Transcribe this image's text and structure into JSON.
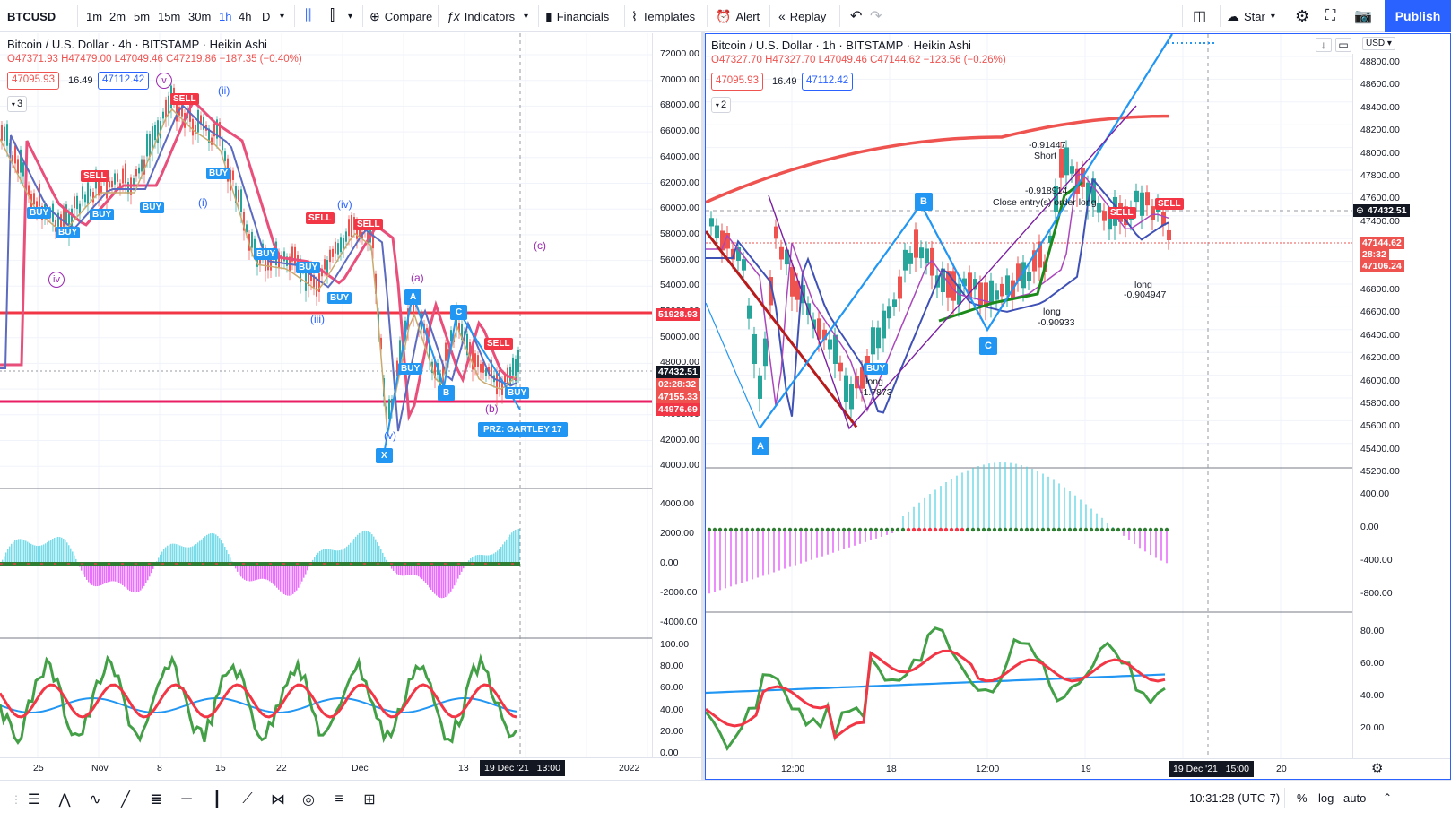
{
  "toolbar": {
    "symbol": "BTCUSD",
    "timeframes": [
      "1m",
      "2m",
      "5m",
      "15m",
      "30m",
      "1h",
      "4h",
      "D"
    ],
    "active_timeframe": "1h",
    "compare_label": "Compare",
    "indicators_label": "Indicators",
    "financials_label": "Financials",
    "templates_label": "Templates",
    "alert_label": "Alert",
    "replay_label": "Replay",
    "star_label": "Star",
    "publish_label": "Publish"
  },
  "left_chart": {
    "title": "Bitcoin / U.S. Dollar · 4h · BITSTAMP · Heikin Ashi",
    "ohlc": "O47371.93  H47479.00  L47049.46  C47219.86  −187.35 (−0.40%)",
    "bid": "47095.93",
    "spread": "16.49",
    "ask": "47112.42",
    "indicator_count": "3",
    "price_ticks": [
      "72000.00",
      "70000.00",
      "68000.00",
      "66000.00",
      "64000.00",
      "62000.00",
      "60000.00",
      "58000.00",
      "56000.00",
      "54000.00",
      "52000.00",
      "50000.00",
      "48000.00",
      "46000.00",
      "44000.00",
      "42000.00",
      "40000.00"
    ],
    "tag_red_top": "51928.93",
    "tag_last": "47432.51",
    "tag_countdown": "02:28:32",
    "tag_price": "47155.33",
    "tag_red_bottom": "44976.69",
    "macd_ticks": [
      "4000.00",
      "2000.00",
      "0.00",
      "-2000.00",
      "-4000.00"
    ],
    "rsi_ticks": [
      "100.00",
      "80.00",
      "60.00",
      "40.00",
      "20.00",
      "0.00"
    ],
    "time_ticks": [
      "25",
      "Nov",
      "8",
      "15",
      "22",
      "Dec",
      "13",
      "2022"
    ],
    "time_marker": "19 Dec '21",
    "time_marker_hour": "13:00",
    "waves": {
      "w_ii": "(ii)",
      "w_i": "(i)",
      "w_iii": "(iii)",
      "w_iv": "(iv)",
      "w_v": "(v)",
      "w_iv_low": "iv",
      "w_v_top": "v",
      "w_a": "(a)",
      "w_b": "(b)",
      "w_c": "(c)"
    },
    "pattern_points": {
      "x": "X",
      "a": "A",
      "b": "B",
      "c": "C"
    },
    "prz_label": "PRZ: GARTLEY 17",
    "buy_label": "BUY",
    "sell_label": "SELL"
  },
  "right_chart": {
    "title": "Bitcoin / U.S. Dollar · 1h · BITSTAMP · Heikin Ashi",
    "ohlc": "O47327.70  H47327.70  L47049.46  C47144.62  −123.56 (−0.26%)",
    "bid": "47095.93",
    "spread": "16.49",
    "ask": "47112.42",
    "indicator_count": "2",
    "currency": "USD",
    "price_ticks": [
      "48800.00",
      "48600.00",
      "48400.00",
      "48200.00",
      "48000.00",
      "47800.00",
      "47600.00",
      "47400.00",
      "47200.00",
      "47000.00",
      "46800.00",
      "46600.00",
      "46400.00",
      "46200.00",
      "46000.00",
      "45800.00",
      "45600.00",
      "45400.00",
      "45200.00"
    ],
    "tag_last": "47432.51",
    "tag_price": "47144.62",
    "tag_countdown": "28:32",
    "tag_low": "47106.24",
    "macd_ticks": [
      "400.00",
      "0.00",
      "-400.00",
      "-800.00"
    ],
    "rsi_ticks": [
      "80.00",
      "60.00",
      "40.00",
      "20.00"
    ],
    "time_ticks": [
      "12:00",
      "18",
      "12:00",
      "19",
      "20"
    ],
    "time_marker": "19 Dec '21",
    "time_marker_hour": "15:00",
    "pattern_points": {
      "a": "A",
      "b": "B",
      "c": "C"
    },
    "annotations": {
      "short_val": "-0.91447",
      "short_label": "Short",
      "close_val": "-0.918914",
      "close_label": "Close entry(s) order long",
      "long1_label": "long",
      "long1_val": "-0.90933",
      "long2_label": "long",
      "long2_val": "-0.904947",
      "long3_label": "long",
      "long3_val": "-1.7873"
    },
    "sell_label": "SELL",
    "buy_label": "BUY"
  },
  "bottom": {
    "clock": "10:31:28 (UTC-7)",
    "percent": "%",
    "log": "log",
    "auto": "auto"
  },
  "colors": {
    "accent": "#2962ff",
    "red": "#ef5350",
    "green": "#26a69a",
    "strong_red": "#f23645"
  }
}
